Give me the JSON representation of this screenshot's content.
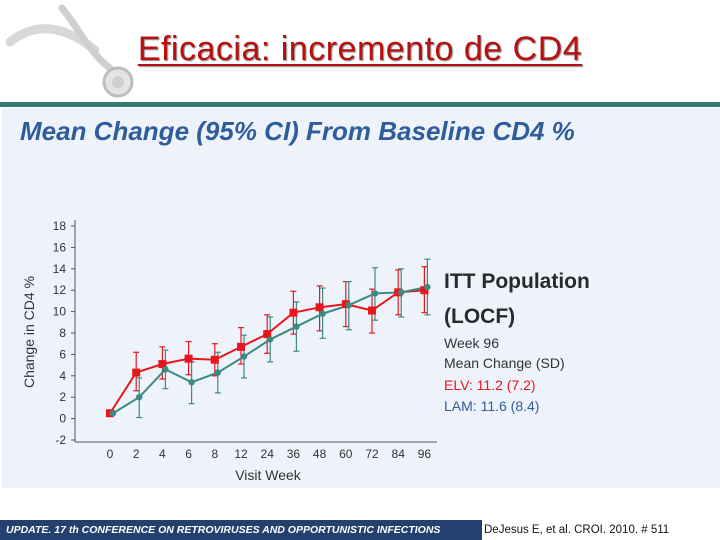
{
  "slide": {
    "title": "Eficacia: incremento de CD4",
    "footer": "UPDATE. 17 th CONFERENCE ON RETROVIRUSES AND OPPORTUNISTIC INFECTIONS",
    "citation": "DeJesus E, et al. CROI. 2010. # 511"
  },
  "legend": {
    "title_line1": "ITT Population",
    "title_line2": "(LOCF)",
    "week": "Week 96",
    "mean_label": "Mean Change (SD)",
    "elv": "ELV: 11.2 (7.2)",
    "lam": "LAM: 11.6 (8.4)"
  },
  "colors": {
    "elv": "#e8161d",
    "lam": "#3b8a84",
    "heading": "#2f5c9b",
    "title": "#b8100e"
  },
  "chart_data": {
    "type": "line",
    "title": "Mean Change (95% CI) From Baseline CD4 %",
    "xlabel": "Visit Week",
    "ylabel": "Change in CD4 %",
    "categories": [
      "0",
      "2",
      "4",
      "6",
      "8",
      "12",
      "24",
      "36",
      "48",
      "60",
      "72",
      "84",
      "96"
    ],
    "yticks": [
      -2,
      0,
      2,
      4,
      6,
      8,
      10,
      12,
      14,
      16,
      18
    ],
    "ylim": [
      -2,
      18
    ],
    "series": [
      {
        "name": "ELV",
        "color": "#e8161d",
        "values": [
          0.5,
          4.3,
          5.1,
          5.6,
          5.5,
          6.7,
          7.9,
          9.9,
          10.4,
          10.7,
          10.1,
          11.8,
          12.0
        ],
        "lower": [
          0.5,
          2.6,
          3.7,
          4.1,
          4.0,
          5.1,
          6.1,
          7.9,
          8.2,
          8.6,
          8.0,
          9.7,
          9.9
        ],
        "upper": [
          0.5,
          6.2,
          6.7,
          7.2,
          7.0,
          8.5,
          9.7,
          11.9,
          12.4,
          12.8,
          12.1,
          13.9,
          14.2
        ]
      },
      {
        "name": "LAM",
        "color": "#3b8a84",
        "values": [
          0.5,
          2.0,
          4.6,
          3.4,
          4.3,
          5.8,
          7.4,
          8.6,
          9.8,
          10.6,
          11.7,
          11.8,
          12.3
        ],
        "lower": [
          0.5,
          0.1,
          2.8,
          1.4,
          2.4,
          3.8,
          5.3,
          6.3,
          7.5,
          8.3,
          9.2,
          9.5,
          9.7
        ],
        "upper": [
          0.5,
          3.8,
          6.4,
          5.3,
          6.2,
          7.8,
          9.5,
          10.9,
          12.2,
          12.8,
          14.1,
          14.0,
          14.9
        ]
      }
    ]
  }
}
